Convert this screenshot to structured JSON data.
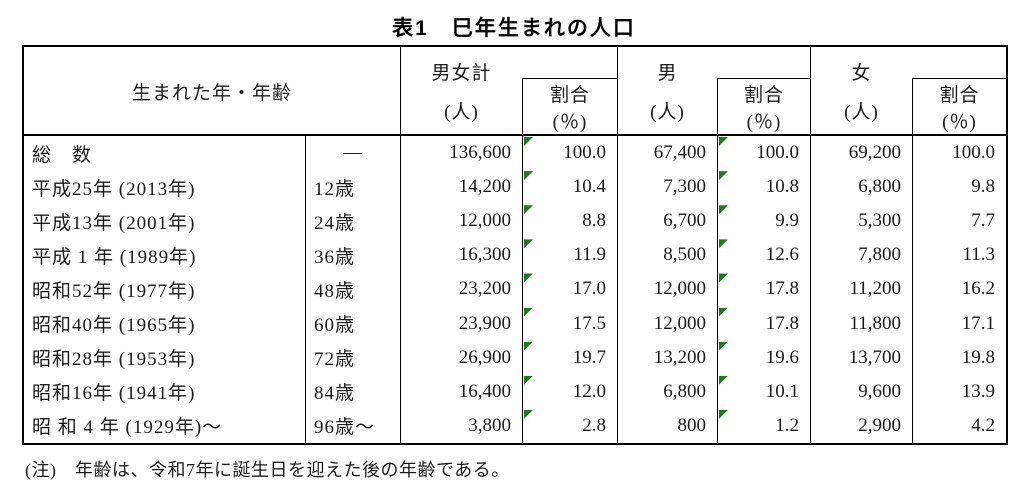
{
  "page": {
    "title": "表1　巳年生まれの人口",
    "note": "(注)　年齢は、令和7年に誕生日を迎えた後の年齢である。"
  },
  "colors": {
    "border": "#000000",
    "text": "#1b1b1b",
    "flag_green": "#1a7d1a",
    "background": "#ffffff"
  },
  "table": {
    "header": {
      "year_age": "生まれた年・年齢",
      "groups": [
        {
          "label": "男女計",
          "unit": "(人)"
        },
        {
          "label": "男",
          "unit": "(人)"
        },
        {
          "label": "女",
          "unit": "(人)"
        }
      ],
      "ratio_label": "割合",
      "ratio_unit": "(％)"
    },
    "flag_marker_columns": [
      "total_pct",
      "male_pct"
    ],
    "rows": [
      {
        "label": "総　数",
        "age": "—",
        "total": "136,600",
        "total_pct": "100.0",
        "male": "67,400",
        "male_pct": "100.0",
        "female": "69,200",
        "female_pct": "100.0"
      },
      {
        "label": "平成25年 (2013年)",
        "age": "12歳",
        "total": "14,200",
        "total_pct": "10.4",
        "male": "7,300",
        "male_pct": "10.8",
        "female": "6,800",
        "female_pct": "9.8"
      },
      {
        "label": "平成13年 (2001年)",
        "age": "24歳",
        "total": "12,000",
        "total_pct": "8.8",
        "male": "6,700",
        "male_pct": "9.9",
        "female": "5,300",
        "female_pct": "7.7"
      },
      {
        "label": "平成 1 年 (1989年)",
        "age": "36歳",
        "total": "16,300",
        "total_pct": "11.9",
        "male": "8,500",
        "male_pct": "12.6",
        "female": "7,800",
        "female_pct": "11.3"
      },
      {
        "label": "昭和52年 (1977年)",
        "age": "48歳",
        "total": "23,200",
        "total_pct": "17.0",
        "male": "12,000",
        "male_pct": "17.8",
        "female": "11,200",
        "female_pct": "16.2"
      },
      {
        "label": "昭和40年 (1965年)",
        "age": "60歳",
        "total": "23,900",
        "total_pct": "17.5",
        "male": "12,000",
        "male_pct": "17.8",
        "female": "11,800",
        "female_pct": "17.1"
      },
      {
        "label": "昭和28年 (1953年)",
        "age": "72歳",
        "total": "26,900",
        "total_pct": "19.7",
        "male": "13,200",
        "male_pct": "19.6",
        "female": "13,700",
        "female_pct": "19.8"
      },
      {
        "label": "昭和16年 (1941年)",
        "age": "84歳",
        "total": "16,400",
        "total_pct": "12.0",
        "male": "6,800",
        "male_pct": "10.1",
        "female": "9,600",
        "female_pct": "13.9"
      },
      {
        "label": "昭 和 4 年 (1929年)～",
        "age": "96歳～",
        "total": "3,800",
        "total_pct": "2.8",
        "male": "800",
        "male_pct": "1.2",
        "female": "2,900",
        "female_pct": "4.2"
      }
    ]
  }
}
